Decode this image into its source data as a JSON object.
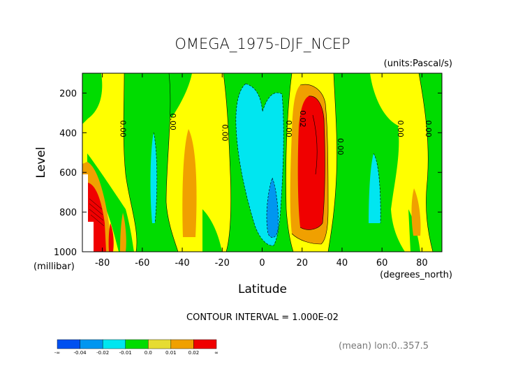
{
  "chart_data": {
    "type": "contour",
    "title": "OMEGA_1975-DJF_NCEP",
    "units_note": "(units:Pascal/s)",
    "xlabel": "Latitude",
    "x_unit": "(degrees_north)",
    "ylabel": "Level",
    "y_unit": "(millibar)",
    "xlim": [
      -90,
      90
    ],
    "ylim": [
      1000,
      100
    ],
    "x_ticks": [
      -80,
      -60,
      -40,
      -20,
      0,
      20,
      40,
      60,
      80
    ],
    "y_ticks": [
      200,
      400,
      600,
      800,
      1000
    ],
    "x_tick_labels": [
      "-80",
      "-60",
      "-40",
      "-20",
      "0",
      "20",
      "40",
      "60",
      "80"
    ],
    "y_tick_labels": [
      "200",
      "400",
      "600",
      "800",
      "1000"
    ],
    "contour_interval_text": "CONTOUR INTERVAL = 1.000E-02",
    "footer_note": "(mean) lon:0..357.5",
    "contour_labels": [
      {
        "text": "0.00",
        "lat": -71,
        "lev": 380
      },
      {
        "text": "0.00",
        "lat": -46,
        "lev": 345
      },
      {
        "text": "0.00",
        "lat": -20,
        "lev": 400
      },
      {
        "text": "0.00",
        "lat": 12,
        "lev": 380
      },
      {
        "text": "0.02",
        "lat": 19,
        "lev": 330
      },
      {
        "text": "0.00",
        "lat": 38,
        "lev": 470
      },
      {
        "text": "0.00",
        "lat": 68,
        "lev": 380
      },
      {
        "text": "0.00",
        "lat": 82,
        "lev": 380
      }
    ],
    "legend": {
      "colors": [
        "#0050f0",
        "#0096f0",
        "#00e6f0",
        "#00dc00",
        "#e6dc32",
        "#f0a000",
        "#f00000"
      ],
      "labels": [
        "-∞",
        "-0.04",
        "-0.02",
        "-0.01",
        "0.0",
        "0.01",
        "0.02",
        "∞"
      ]
    },
    "colors": {
      "background_positive": "#ffff00",
      "light_green": "#00dc00",
      "cyan": "#00e6f0",
      "blue": "#0096f0",
      "orange": "#f0a000",
      "red": "#f00000"
    }
  }
}
